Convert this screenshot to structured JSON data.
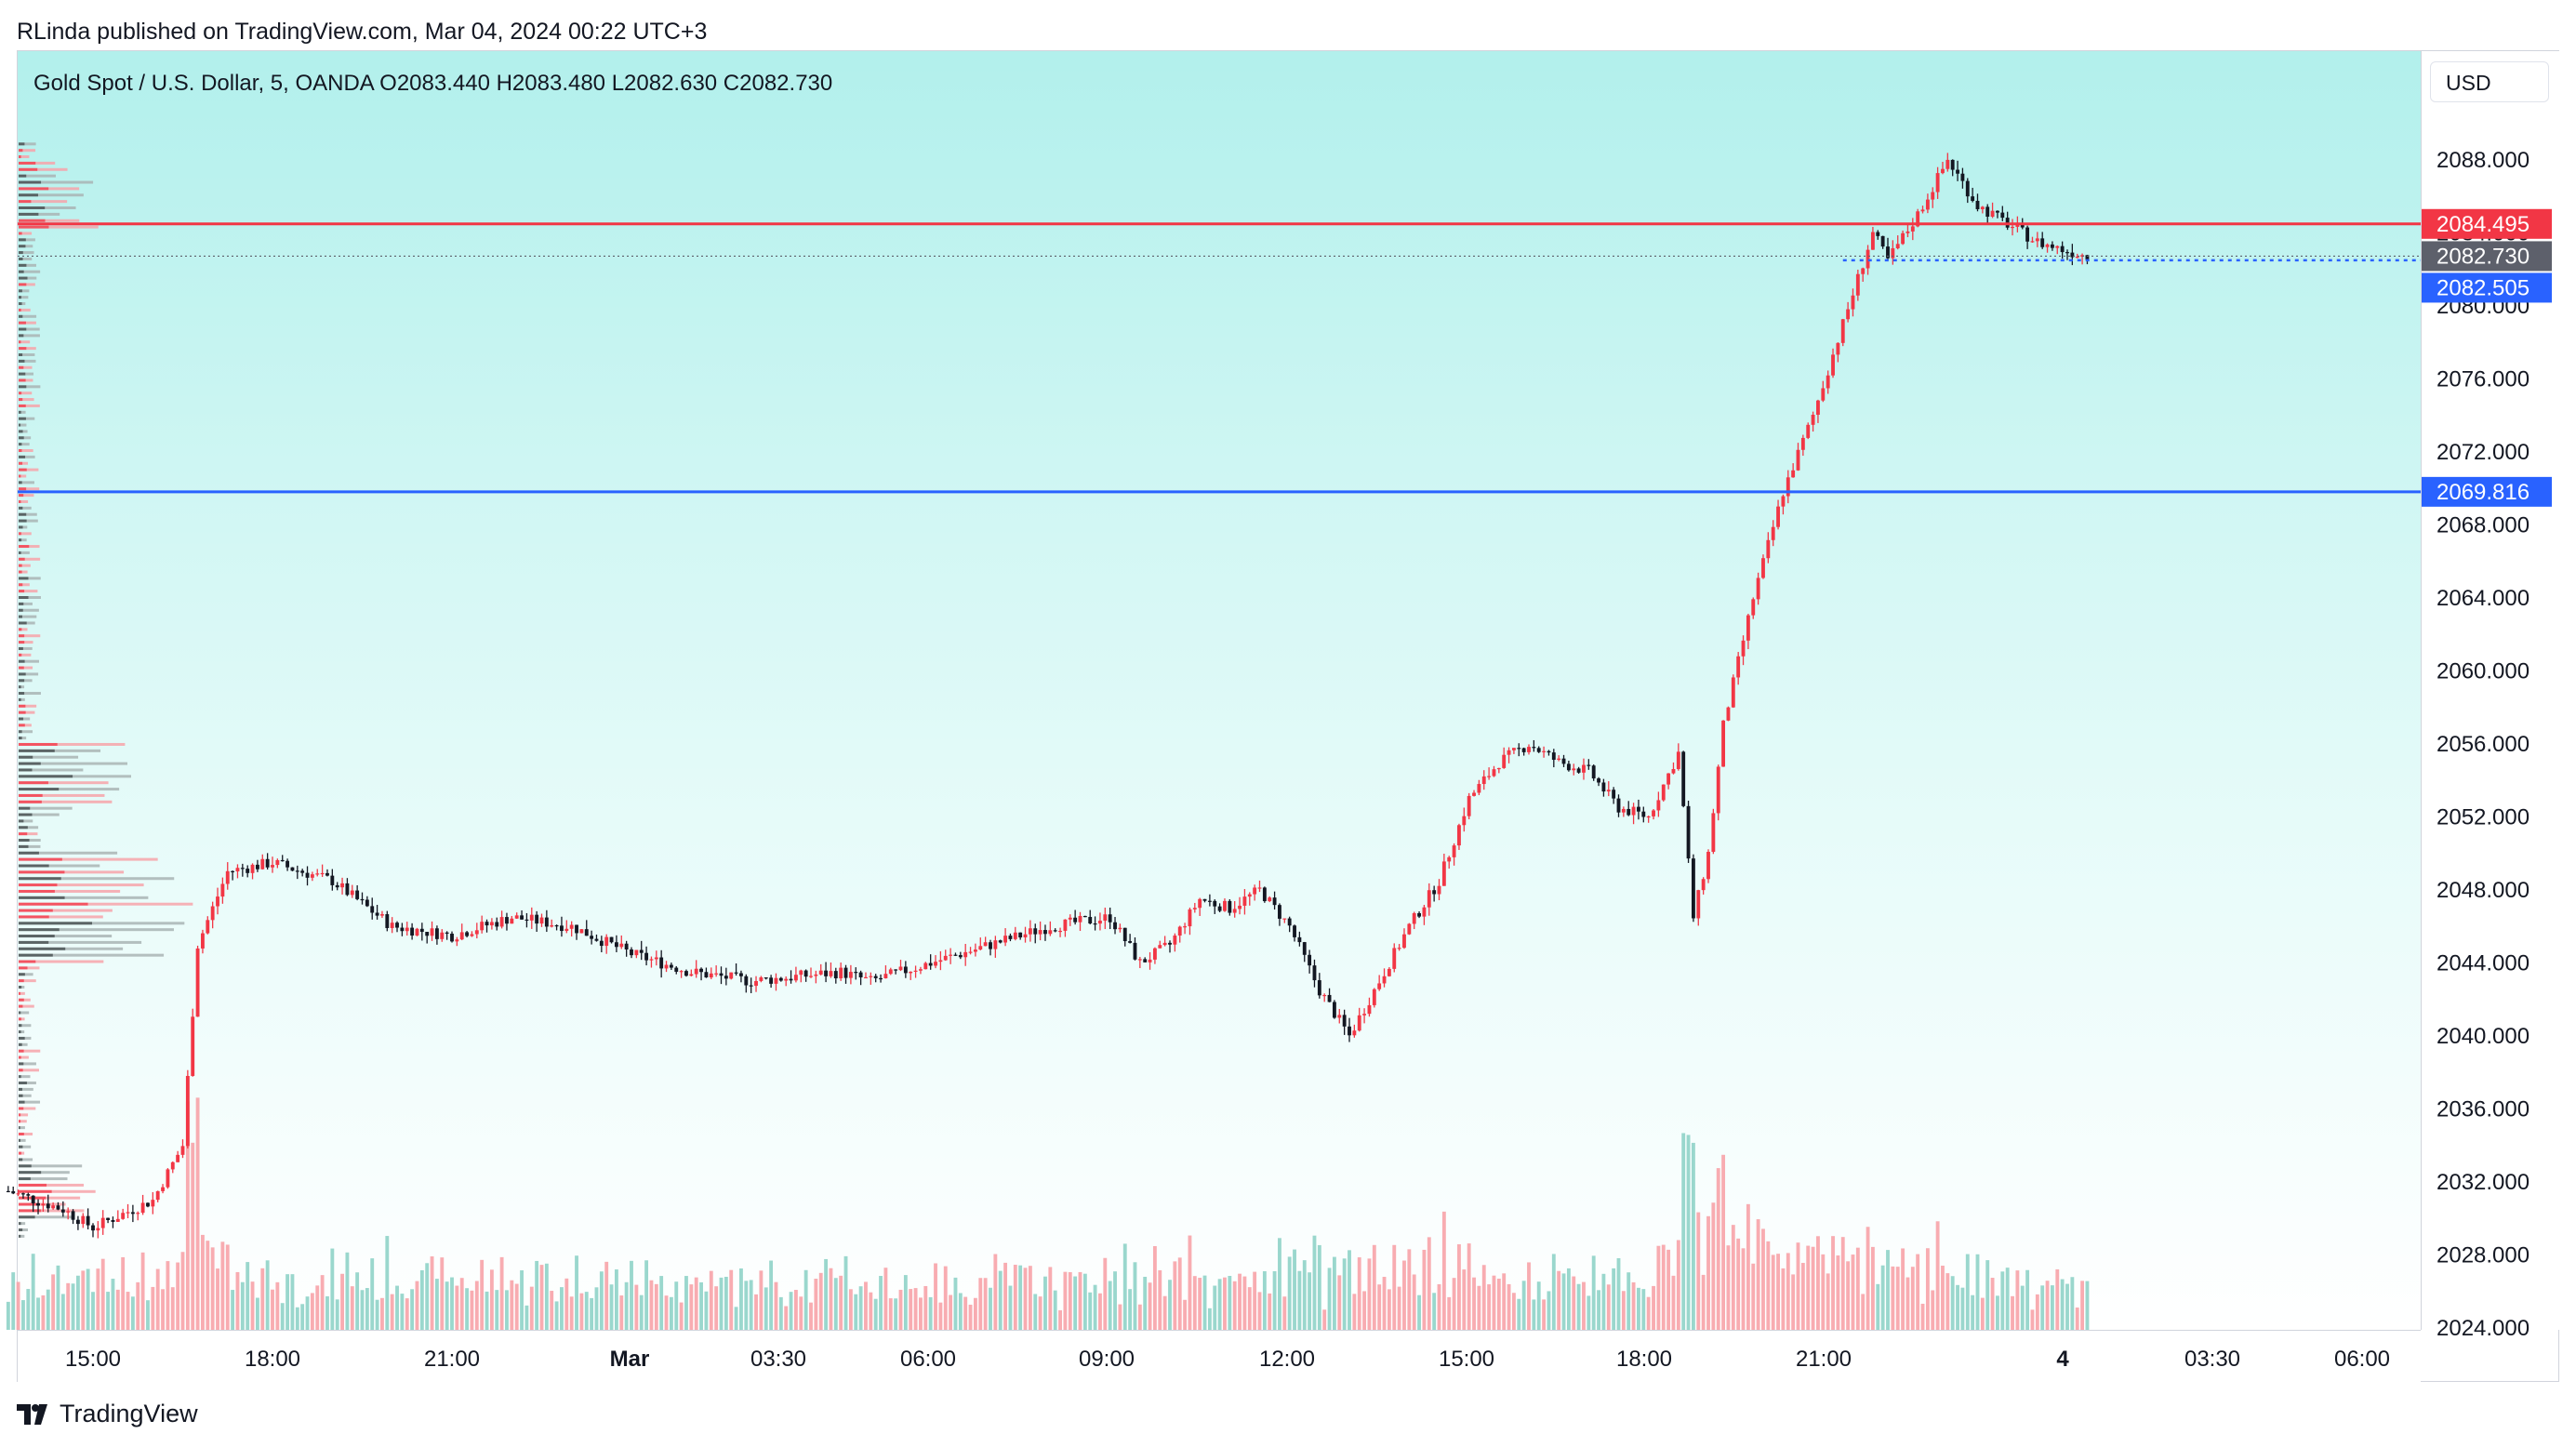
{
  "header": {
    "text": "RLinda published on TradingView.com, Mar 04, 2024 00:22 UTC+3"
  },
  "legend": {
    "text": "Gold Spot / U.S. Dollar, 5, OANDA  O2083.440  H2083.480  L2082.630  C2082.730"
  },
  "currency_button": {
    "label": "USD"
  },
  "brand": {
    "label": "TradingView",
    "icon": "tradingview-logo-icon"
  },
  "colors": {
    "up": "#f23645",
    "down": "#131722",
    "vol_up": "#f7a3a9",
    "vol_down": "#8fd3c8",
    "resistance": "#f23645",
    "support": "#2962ff",
    "bid": "#2962ff"
  },
  "chart_data": {
    "type": "candlestick",
    "title": "Gold Spot / U.S. Dollar, 5, OANDA",
    "ohlc_last": {
      "open": 2083.44,
      "high": 2083.48,
      "low": 2082.63,
      "close": 2082.73
    },
    "ylim": [
      2024,
      2092
    ],
    "y_ticks": [
      "2088.000",
      "2084.000",
      "2080.000",
      "2076.000",
      "2072.000",
      "2068.000",
      "2064.000",
      "2060.000",
      "2056.000",
      "2052.000",
      "2048.000",
      "2044.000",
      "2040.000",
      "2036.000",
      "2032.000",
      "2028.000",
      "2024.000"
    ],
    "x_ticks": [
      "15:00",
      "18:00",
      "21:00",
      "Mar",
      "03:30",
      "06:00",
      "09:00",
      "12:00",
      "15:00",
      "18:00",
      "21:00",
      "4",
      "03:30",
      "06:00"
    ],
    "price_labels": [
      {
        "value": "2084.495",
        "role": "resistance"
      },
      {
        "value": "2082.730",
        "role": "last"
      },
      {
        "value": "2082.505",
        "role": "bid"
      },
      {
        "value": "2069.816",
        "role": "support"
      }
    ],
    "horizontal_lines": [
      {
        "price": 2084.495,
        "style": "solid",
        "color": "#f23645"
      },
      {
        "price": 2069.816,
        "style": "solid",
        "color": "#2962ff"
      }
    ],
    "price_path": [
      {
        "t": "Mar 01 13:35",
        "p": 2031.5
      },
      {
        "t": "Mar 01 14:30",
        "p": 2030.5
      },
      {
        "t": "Mar 01 15:00",
        "p": 2029.5
      },
      {
        "t": "Mar 01 16:00",
        "p": 2031.0
      },
      {
        "t": "Mar 01 16:30",
        "p": 2034.0
      },
      {
        "t": "Mar 01 16:45",
        "p": 2045.0
      },
      {
        "t": "Mar 01 17:15",
        "p": 2049.0
      },
      {
        "t": "Mar 01 18:00",
        "p": 2049.5
      },
      {
        "t": "Mar 01 19:00",
        "p": 2048.5
      },
      {
        "t": "Mar 01 20:00",
        "p": 2046.0
      },
      {
        "t": "Mar 01 21:00",
        "p": 2045.5
      },
      {
        "t": "Mar 01 22:00",
        "p": 2046.5
      },
      {
        "t": "Mar 01 23:00",
        "p": 2046.0
      },
      {
        "t": "Mar 02 00:00",
        "p": 2044.5
      },
      {
        "t": "Mar 02 01:00",
        "p": 2043.5
      },
      {
        "t": "Mar 02 02:00",
        "p": 2043.0
      },
      {
        "t": "Mar 02 03:30",
        "p": 2043.5
      },
      {
        "t": "Mar 02 04:00",
        "p": 2043.0
      },
      {
        "t": "Mar 02 05:00",
        "p": 2044.0
      },
      {
        "t": "Mar 02 06:00",
        "p": 2045.0
      },
      {
        "t": "Mar 02 07:00",
        "p": 2046.0
      },
      {
        "t": "Mar 02 08:00",
        "p": 2046.5
      },
      {
        "t": "Mar 02 08:30",
        "p": 2044.0
      },
      {
        "t": "Mar 02 09:00",
        "p": 2045.0
      },
      {
        "t": "Mar 02 09:30",
        "p": 2047.5
      },
      {
        "t": "Mar 02 10:00",
        "p": 2047.0
      },
      {
        "t": "Mar 02 10:30",
        "p": 2048.0
      },
      {
        "t": "Mar 02 11:00",
        "p": 2046.0
      },
      {
        "t": "Mar 02 11:30",
        "p": 2042.5
      },
      {
        "t": "Mar 02 12:00",
        "p": 2040.0
      },
      {
        "t": "Mar 02 12:30",
        "p": 2043.0
      },
      {
        "t": "Mar 02 13:00",
        "p": 2046.0
      },
      {
        "t": "Mar 02 13:30",
        "p": 2048.5
      },
      {
        "t": "Mar 02 14:00",
        "p": 2053.0
      },
      {
        "t": "Mar 02 14:30",
        "p": 2055.0
      },
      {
        "t": "Mar 02 15:00",
        "p": 2056.0
      },
      {
        "t": "Mar 02 15:30",
        "p": 2055.0
      },
      {
        "t": "Mar 02 16:00",
        "p": 2054.5
      },
      {
        "t": "Mar 02 16:30",
        "p": 2052.5
      },
      {
        "t": "Mar 02 17:00",
        "p": 2052.0
      },
      {
        "t": "Mar 02 17:30",
        "p": 2055.5
      },
      {
        "t": "Mar 02 17:45",
        "p": 2046.5
      },
      {
        "t": "Mar 02 18:00",
        "p": 2050.0
      },
      {
        "t": "Mar 02 18:15",
        "p": 2057.0
      },
      {
        "t": "Mar 02 18:45",
        "p": 2064.0
      },
      {
        "t": "Mar 02 19:15",
        "p": 2069.8
      },
      {
        "t": "Mar 02 19:45",
        "p": 2074.0
      },
      {
        "t": "Mar 02 20:15",
        "p": 2079.0
      },
      {
        "t": "Mar 02 20:45",
        "p": 2084.0
      },
      {
        "t": "Mar 02 21:00",
        "p": 2082.5
      },
      {
        "t": "Mar 02 21:30",
        "p": 2085.0
      },
      {
        "t": "Mar 02 22:00",
        "p": 2088.0
      },
      {
        "t": "Mar 02 22:30",
        "p": 2085.5
      },
      {
        "t": "Mar 02 23:00",
        "p": 2084.5
      },
      {
        "t": "Mar 02 23:30",
        "p": 2083.5
      },
      {
        "t": "Mar 03 00:00",
        "p": 2083.0
      },
      {
        "t": "Mar 03 00:22",
        "p": 2082.73
      }
    ]
  }
}
